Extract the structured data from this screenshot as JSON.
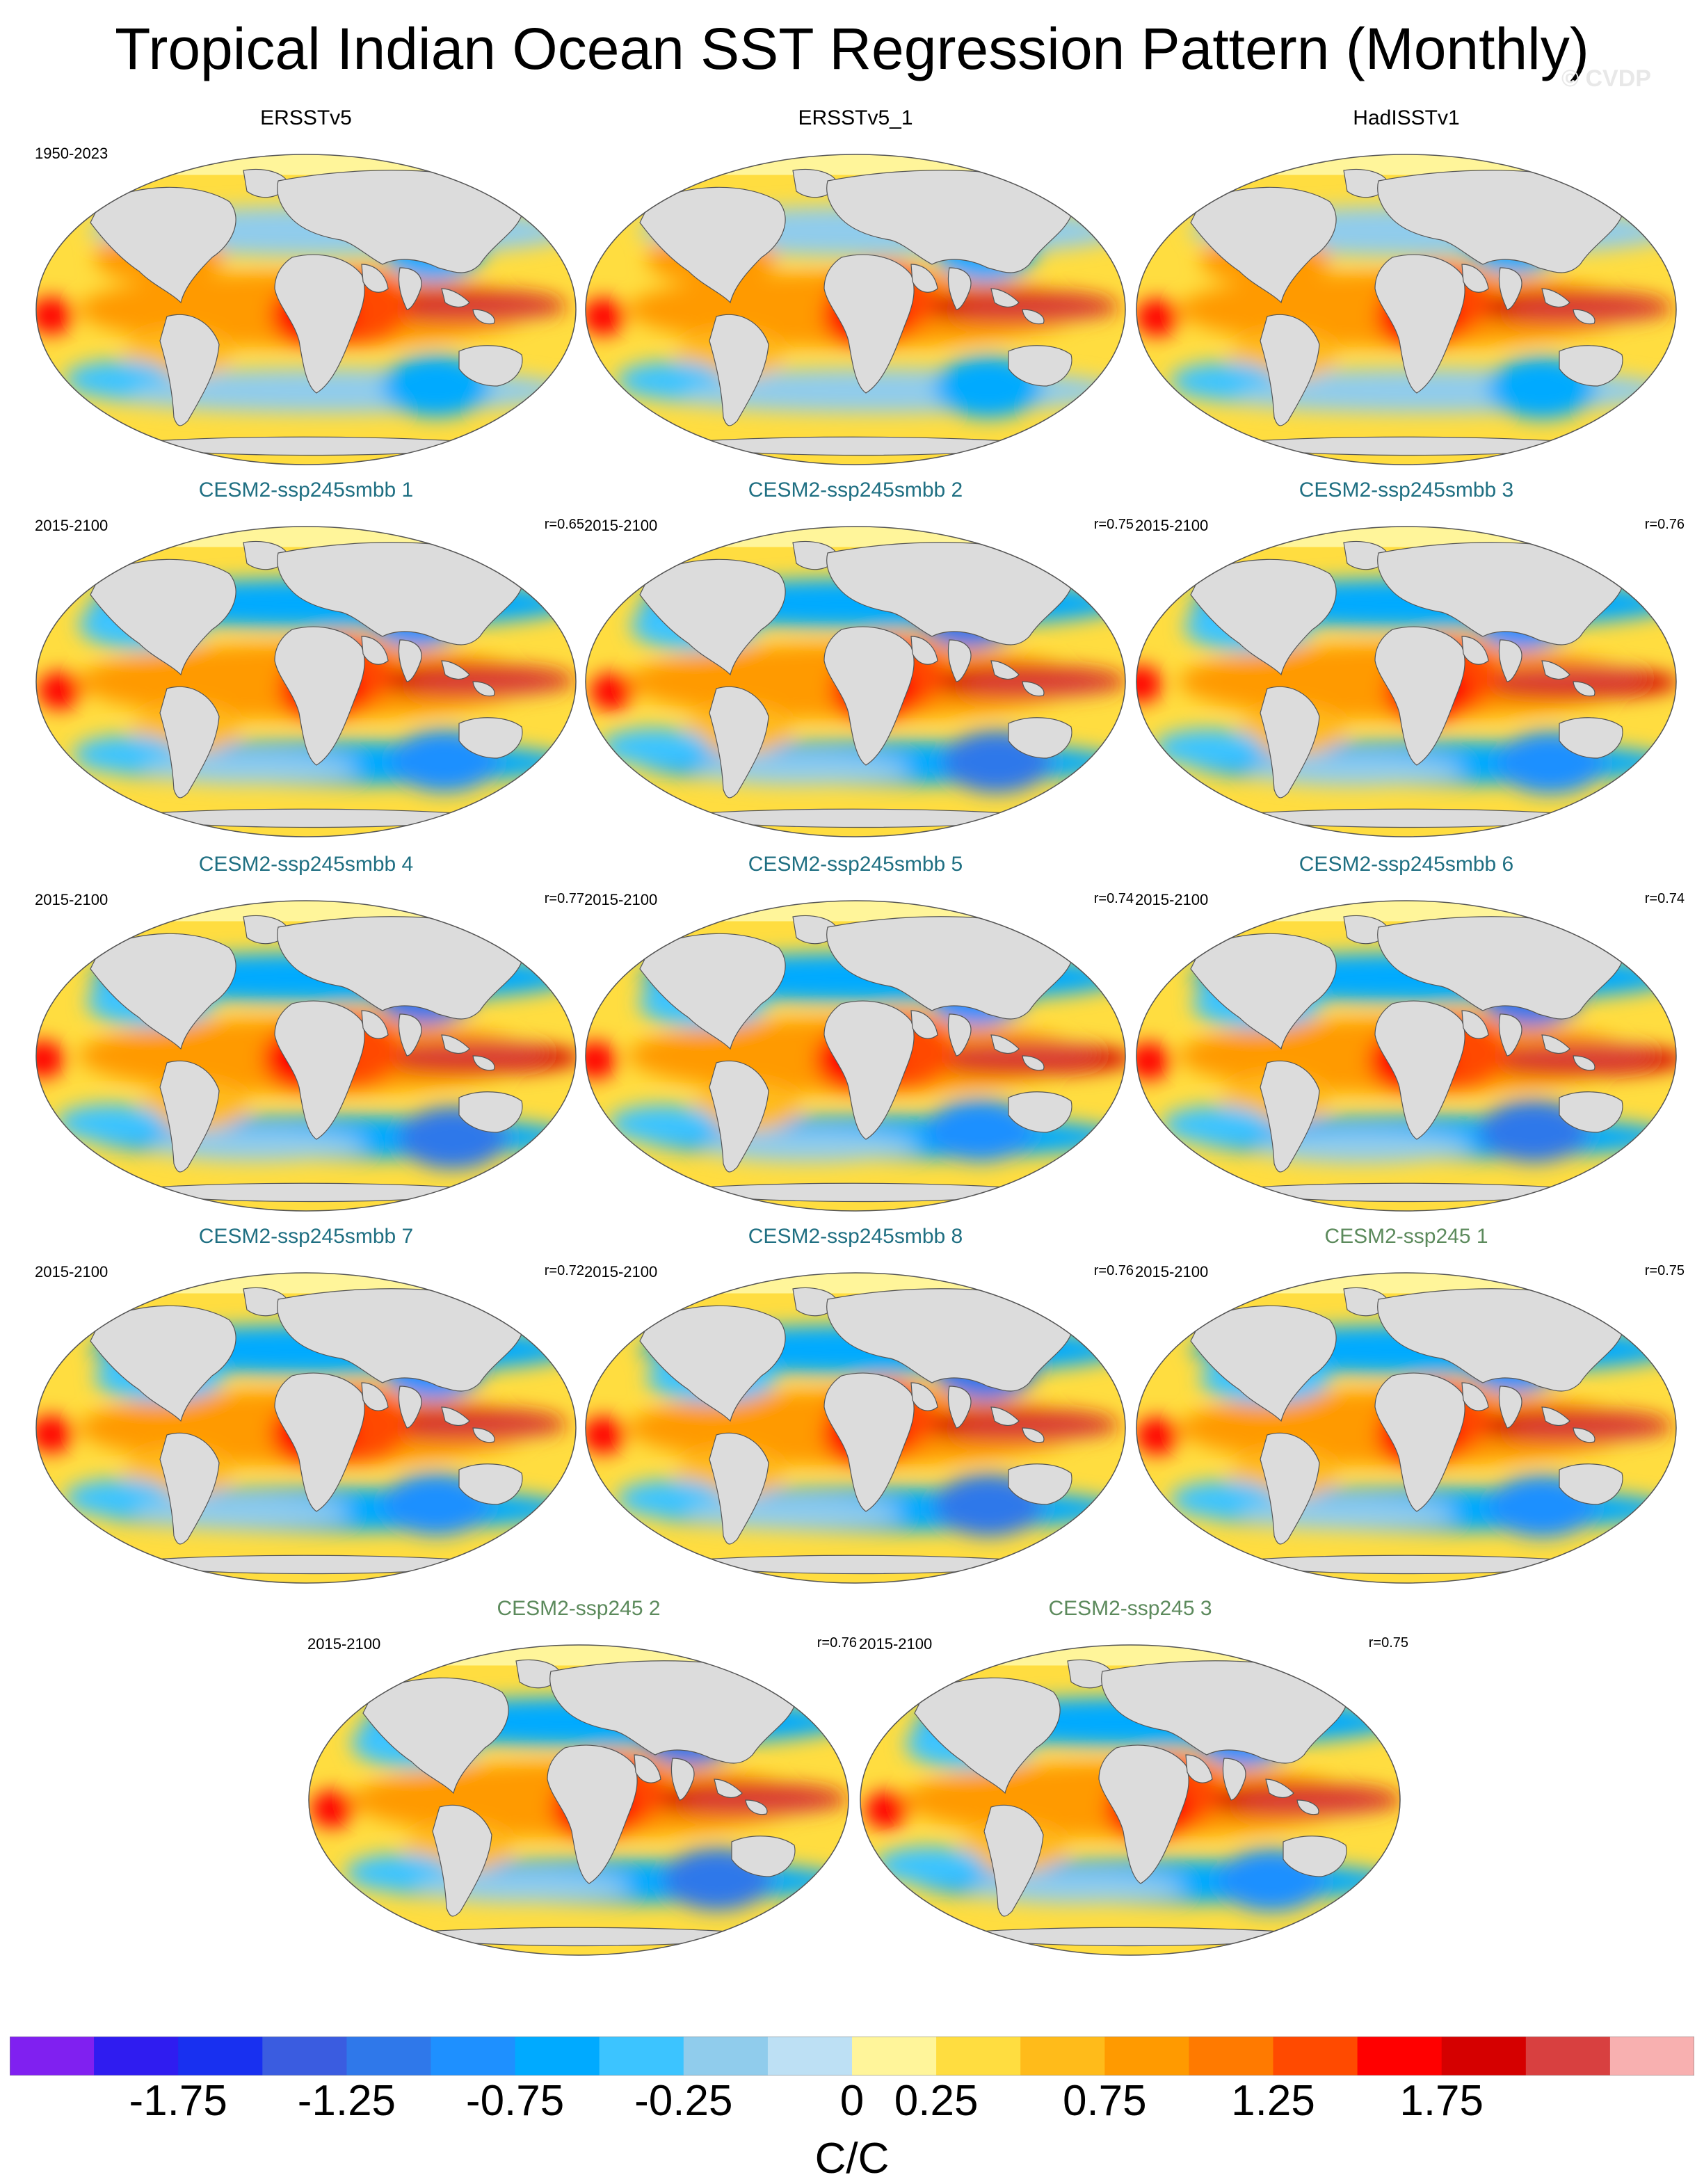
{
  "title": "Tropical Indian Ocean SST Regression Pattern (Monthly)",
  "watermark": "© CVDP",
  "colors": {
    "ocean_background": "#f4e27a",
    "land": "#dcdcdc",
    "obs_title": "#000000",
    "smbb_title": "#1f6f82",
    "ssp245_title": "#5c8a5c"
  },
  "panels": [
    {
      "title": "ERSSTv5",
      "years": "1950-2023",
      "corr": "",
      "group": "obs",
      "pattern": 0
    },
    {
      "title": "ERSSTv5_1",
      "years": "",
      "corr": "",
      "group": "obs",
      "pattern": 1
    },
    {
      "title": "HadISSTv1",
      "years": "",
      "corr": "",
      "group": "obs",
      "pattern": 2
    },
    {
      "title": "CESM2-ssp245smbb 1",
      "years": "2015-2100",
      "corr": "r=0.65",
      "group": "smbb",
      "pattern": 3
    },
    {
      "title": "CESM2-ssp245smbb 2",
      "years": "2015-2100",
      "corr": "r=0.75",
      "group": "smbb",
      "pattern": 4
    },
    {
      "title": "CESM2-ssp245smbb 3",
      "years": "2015-2100",
      "corr": "r=0.76",
      "group": "smbb",
      "pattern": 5
    },
    {
      "title": "CESM2-ssp245smbb 4",
      "years": "2015-2100",
      "corr": "r=0.77",
      "group": "smbb",
      "pattern": 6
    },
    {
      "title": "CESM2-ssp245smbb 5",
      "years": "2015-2100",
      "corr": "r=0.74",
      "group": "smbb",
      "pattern": 7
    },
    {
      "title": "CESM2-ssp245smbb 6",
      "years": "2015-2100",
      "corr": "r=0.74",
      "group": "smbb",
      "pattern": 8
    },
    {
      "title": "CESM2-ssp245smbb 7",
      "years": "2015-2100",
      "corr": "r=0.72",
      "group": "smbb",
      "pattern": 9
    },
    {
      "title": "CESM2-ssp245smbb 8",
      "years": "2015-2100",
      "corr": "r=0.76",
      "group": "smbb",
      "pattern": 10
    },
    {
      "title": "CESM2-ssp245 1",
      "years": "2015-2100",
      "corr": "r=0.75",
      "group": "ssp245",
      "pattern": 11
    },
    {
      "title": "CESM2-ssp245 2",
      "years": "2015-2100",
      "corr": "r=0.76",
      "group": "ssp245",
      "pattern": 12
    },
    {
      "title": "CESM2-ssp245 3",
      "years": "2015-2100",
      "corr": "r=0.75",
      "group": "ssp245",
      "pattern": 13
    }
  ],
  "colorbar": {
    "colors": [
      "#8020f0",
      "#2f1cf0",
      "#1830f0",
      "#3a5ce0",
      "#2f78ea",
      "#1e90ff",
      "#00aaff",
      "#3cc4ff",
      "#90ccec",
      "#bde0f4",
      "#fff59a",
      "#ffdd40",
      "#ffbb1a",
      "#ff9a00",
      "#ff7a00",
      "#ff4a00",
      "#ff0000",
      "#d50000",
      "#d84040",
      "#f8b0b0"
    ],
    "labels": [
      "-1.75",
      "-1.25",
      "-0.75",
      "-0.25",
      "0",
      "0.25",
      "0.75",
      "1.25",
      "1.75"
    ],
    "label_boundaries": [
      2,
      4,
      6,
      8,
      10,
      11,
      13,
      15,
      17
    ],
    "units": "C/C"
  }
}
